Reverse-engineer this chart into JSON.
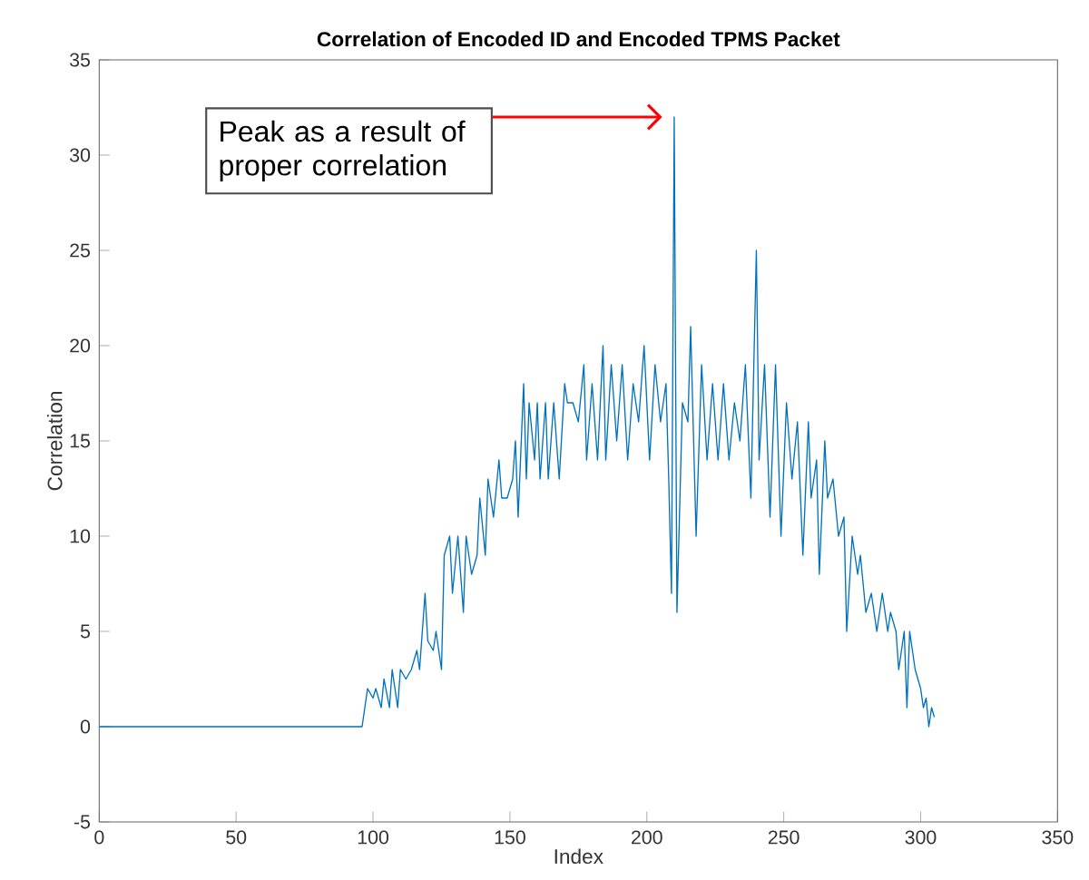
{
  "chart_data": {
    "type": "line",
    "title": "Correlation of Encoded ID and Encoded TPMS Packet",
    "xlabel": "Index",
    "ylabel": "Correlation",
    "xlim": [
      0,
      350
    ],
    "xticks": [
      0,
      50,
      100,
      150,
      200,
      250,
      300,
      350
    ],
    "ylim": [
      -5,
      35
    ],
    "yticks": [
      -5,
      0,
      5,
      10,
      15,
      20,
      25,
      30,
      35
    ],
    "marker": "none",
    "line_style": "solid",
    "annotations": [
      {
        "text": "Peak as a result of proper correlation",
        "x": 210,
        "y": 32
      }
    ],
    "series": [
      {
        "color": "#0072bd",
        "x": [
          0,
          96,
          97,
          98,
          100,
          101,
          103,
          104,
          106,
          107,
          109,
          110,
          112,
          114,
          116,
          117,
          119,
          120,
          122,
          123,
          125,
          126,
          128,
          129,
          131,
          133,
          134,
          136,
          138,
          139,
          141,
          142,
          144,
          146,
          147,
          149,
          151,
          152,
          153,
          155,
          156,
          157,
          159,
          160,
          161,
          163,
          164,
          166,
          168,
          170,
          171,
          173,
          175,
          177,
          178,
          180,
          182,
          184,
          185,
          187,
          189,
          191,
          193,
          195,
          197,
          199,
          201,
          203,
          205,
          207,
          208,
          209,
          210,
          211,
          213,
          215,
          216,
          218,
          220,
          222,
          224,
          226,
          228,
          230,
          232,
          234,
          236,
          238,
          240,
          241,
          243,
          245,
          247,
          249,
          251,
          253,
          255,
          257,
          259,
          260,
          262,
          263,
          265,
          266,
          268,
          270,
          272,
          273,
          275,
          277,
          278,
          280,
          282,
          284,
          286,
          288,
          289,
          291,
          292,
          294,
          295,
          296,
          298,
          300,
          301,
          302,
          303,
          304,
          305
        ],
        "values": [
          0,
          0,
          1,
          2,
          1.5,
          2,
          1,
          2.5,
          1,
          3,
          1,
          3,
          2.5,
          3,
          4,
          3,
          7,
          4.5,
          4,
          5,
          3,
          9,
          10,
          7,
          10,
          6,
          10,
          8,
          9,
          12,
          9,
          13,
          11,
          14,
          12,
          12,
          13,
          15,
          11,
          18,
          13,
          17,
          14,
          17,
          13,
          17,
          13,
          17,
          13,
          18,
          17,
          17,
          16,
          19,
          14,
          18,
          14,
          20,
          14,
          19,
          15,
          19,
          14,
          18,
          16,
          20,
          14,
          19,
          16,
          18,
          13,
          7,
          32,
          6,
          17,
          16,
          21,
          10,
          19,
          14,
          18,
          14,
          18,
          14,
          17,
          15,
          19,
          12,
          25,
          14,
          19,
          11,
          19,
          10,
          17,
          13,
          16,
          9,
          16,
          12,
          14,
          8,
          15,
          12,
          13,
          10,
          11,
          5,
          10,
          8,
          9,
          6,
          7,
          5,
          7,
          5,
          6,
          5,
          3,
          5,
          1,
          5,
          3,
          2,
          1,
          1.5,
          0,
          1,
          0.5
        ]
      }
    ]
  }
}
